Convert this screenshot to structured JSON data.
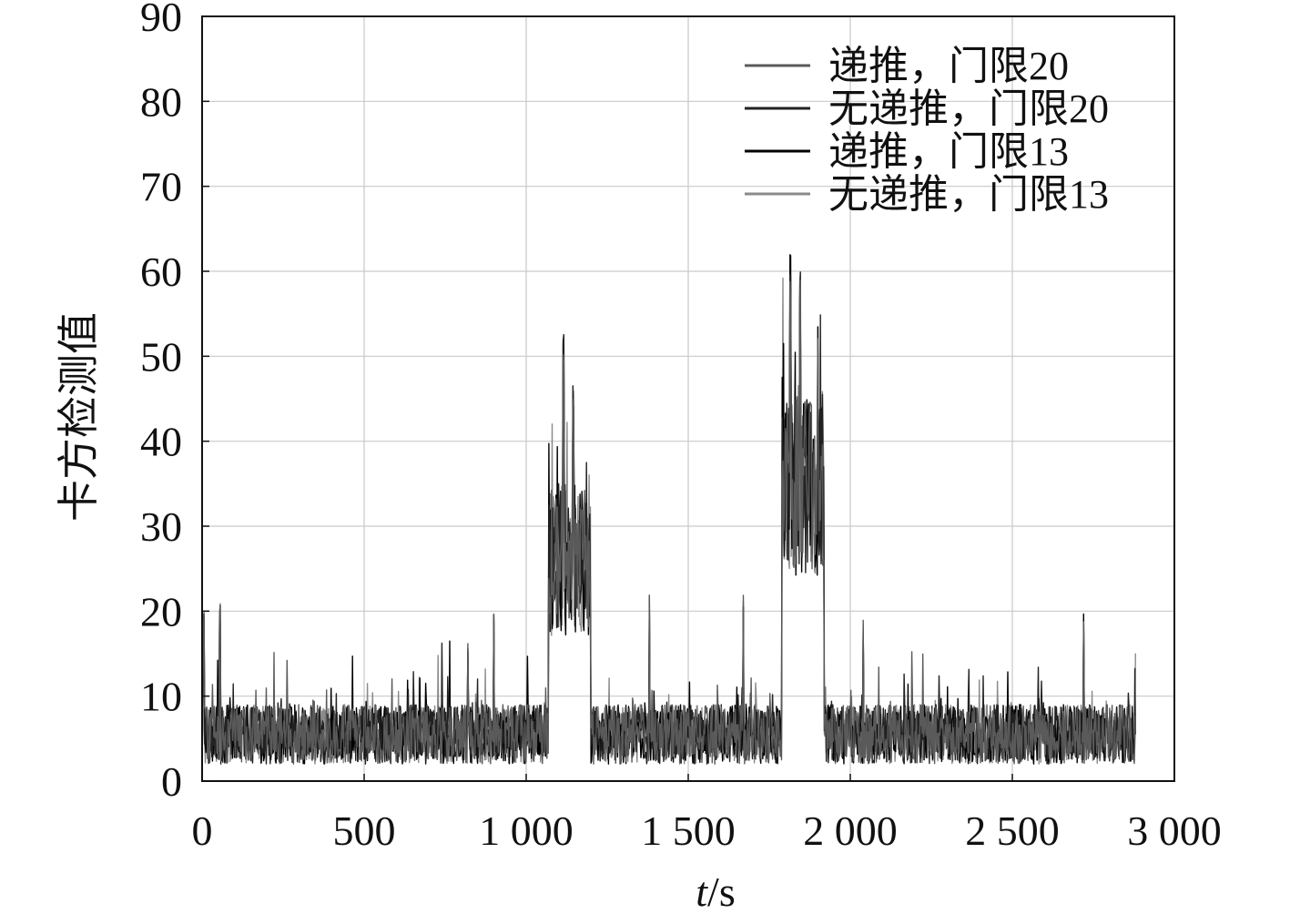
{
  "chart_data": {
    "type": "line",
    "title": "",
    "xlabel": "t/s",
    "xlabel_italic": "t",
    "xlabel_rest": "/s",
    "ylabel": "卡方检测值",
    "xlim": [
      0,
      3000
    ],
    "ylim": [
      0,
      90
    ],
    "x_ticks": [
      0,
      500,
      1000,
      1500,
      2000,
      2500,
      3000
    ],
    "x_tick_labels": [
      "0",
      "500",
      "1 000",
      "1 500",
      "2 000",
      "2 500",
      "3 000"
    ],
    "y_ticks": [
      0,
      10,
      20,
      30,
      40,
      50,
      60,
      70,
      80,
      90
    ],
    "y_tick_labels": [
      "0",
      "10",
      "20",
      "30",
      "40",
      "50",
      "60",
      "70",
      "80",
      "90"
    ],
    "grid": true,
    "legend_position": "top-right",
    "x_range_data": [
      0,
      2880
    ],
    "segments": [
      {
        "x_start": 0,
        "x_end": 1070,
        "mean": 5.5,
        "spread": 3.5
      },
      {
        "x_start": 1070,
        "x_end": 1200,
        "mean": 26,
        "spread": 9
      },
      {
        "x_start": 1200,
        "x_end": 1790,
        "mean": 5.5,
        "spread": 3.5
      },
      {
        "x_start": 1790,
        "x_end": 1920,
        "mean": 35,
        "spread": 11
      },
      {
        "x_start": 1920,
        "x_end": 2880,
        "mean": 5.5,
        "spread": 3.5
      }
    ],
    "notable_peaks": [
      {
        "x": 5,
        "y": 20
      },
      {
        "x": 55,
        "y": 21
      },
      {
        "x": 820,
        "y": 17
      },
      {
        "x": 900,
        "y": 21
      },
      {
        "x": 1115,
        "y": 53
      },
      {
        "x": 1145,
        "y": 47
      },
      {
        "x": 1380,
        "y": 22
      },
      {
        "x": 1670,
        "y": 22
      },
      {
        "x": 1815,
        "y": 62
      },
      {
        "x": 1845,
        "y": 60
      },
      {
        "x": 1900,
        "y": 56
      },
      {
        "x": 2040,
        "y": 19
      },
      {
        "x": 2720,
        "y": 20
      }
    ],
    "series": [
      {
        "name": "递推，门限20",
        "color": "#5a5a5a"
      },
      {
        "name": "无递推，门限20",
        "color": "#222222"
      },
      {
        "name": "递推，门限13",
        "color": "#000000"
      },
      {
        "name": "无递推，门限13",
        "color": "#8a8a8a"
      }
    ]
  }
}
